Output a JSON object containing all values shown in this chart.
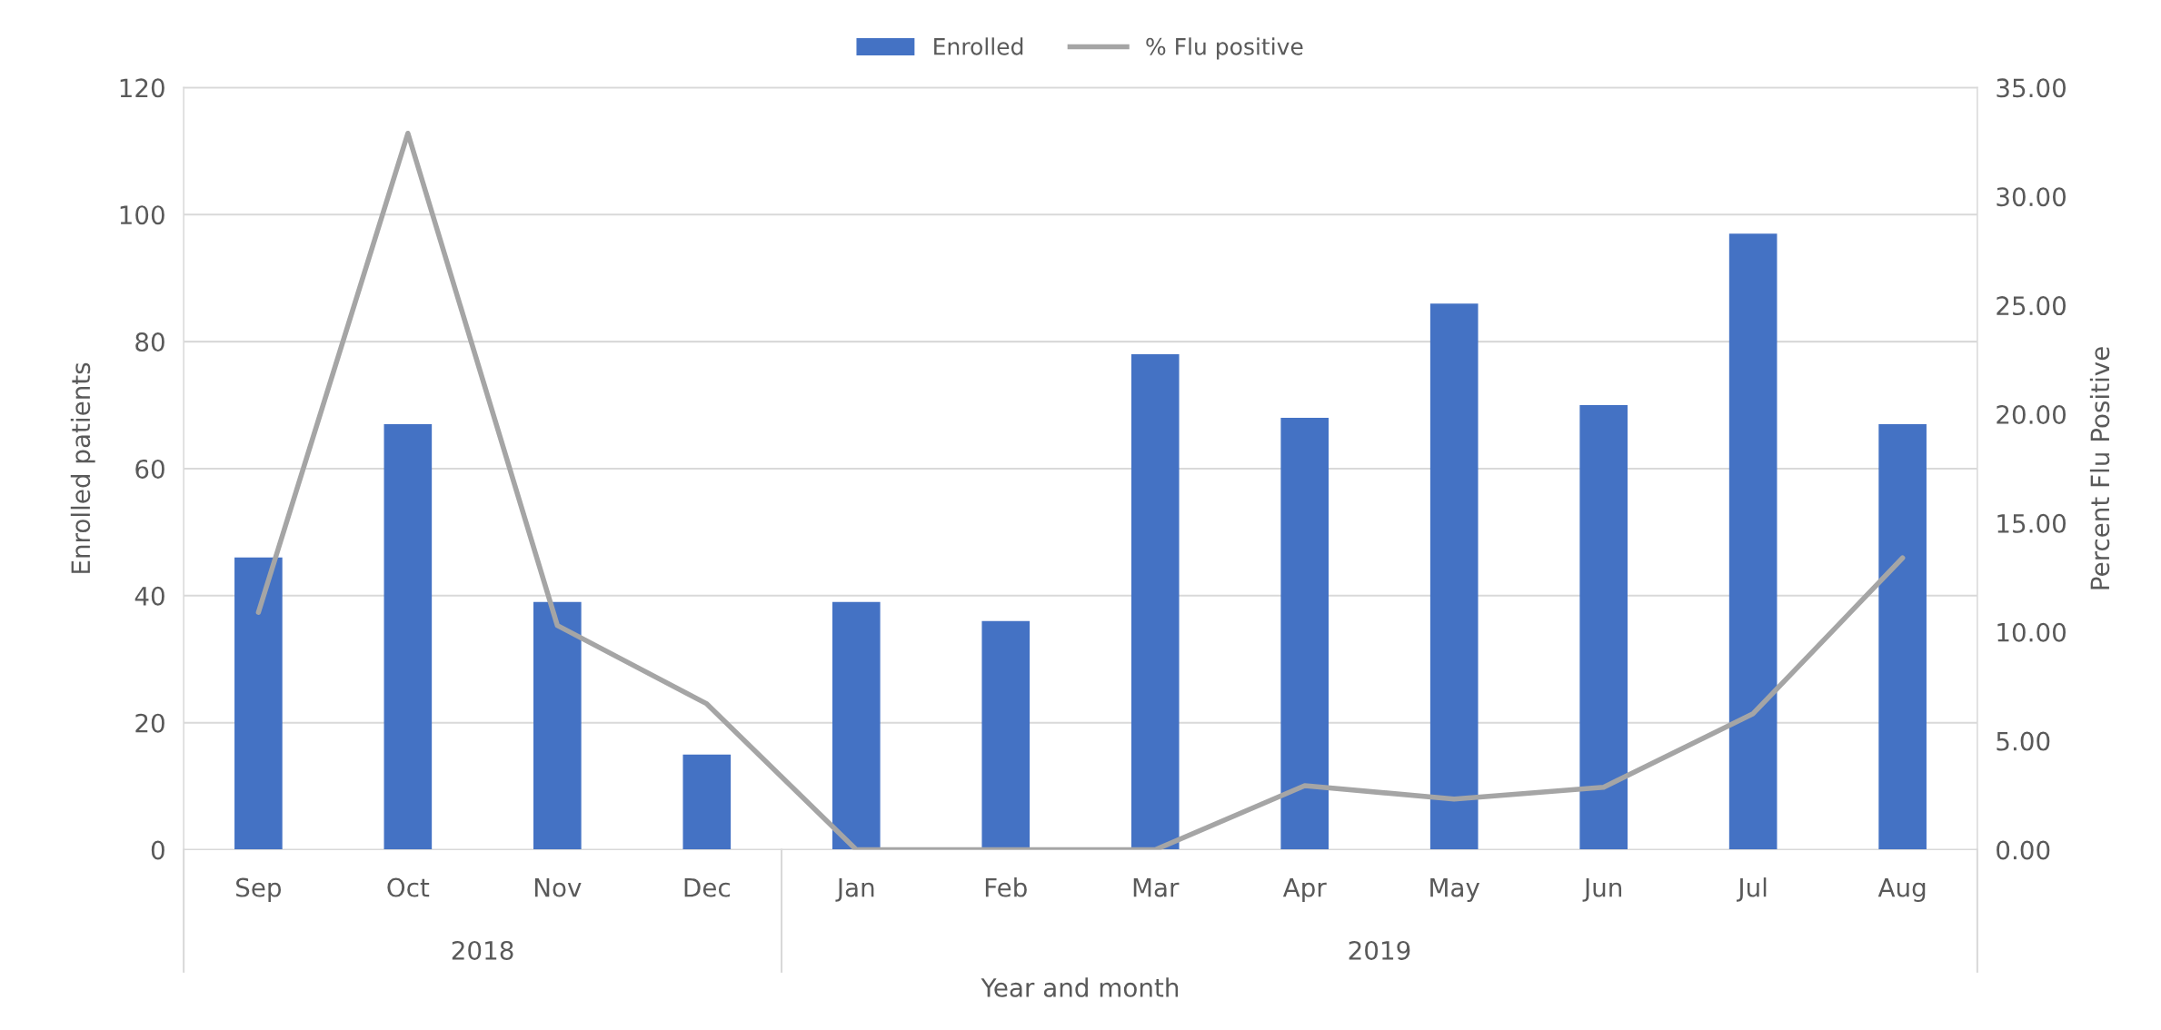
{
  "chart_data": {
    "type": "bar",
    "categories": [
      "Sep",
      "Oct",
      "Nov",
      "Dec",
      "Jan",
      "Feb",
      "Mar",
      "Apr",
      "May",
      "Jun",
      "Jul",
      "Aug"
    ],
    "series": [
      {
        "name": "Enrolled",
        "color": "#4472c4",
        "values": [
          46,
          67,
          39,
          15,
          39,
          36,
          78,
          68,
          86,
          70,
          97,
          67
        ]
      },
      {
        "name": "% Flu positive",
        "type": "line",
        "axis": "y2",
        "color": "#a5a5a5",
        "marker": "none",
        "line_style": "solid",
        "values": [
          10.9,
          32.9,
          10.3,
          6.7,
          0,
          0,
          0,
          2.94,
          2.33,
          2.87,
          6.25,
          13.4
        ]
      }
    ],
    "xlabel": "Year and month",
    "ylabel": "Enrolled patients",
    "y2label": "Percent Flu Positive",
    "ylim": [
      0,
      120
    ],
    "yticks": [
      0,
      20,
      40,
      60,
      80,
      100,
      120
    ],
    "y2lim": [
      0,
      35
    ],
    "y2ticks": [
      {
        "value": 0,
        "label": "0.00"
      },
      {
        "value": 5,
        "label": "5.00"
      },
      {
        "value": 10,
        "label": "10.00"
      },
      {
        "value": 15,
        "label": "15.00"
      },
      {
        "value": 20,
        "label": "20.00"
      },
      {
        "value": 25,
        "label": "25.00"
      },
      {
        "value": 30,
        "label": "30.00"
      },
      {
        "value": 35,
        "label": "35.00"
      }
    ],
    "annotations": [
      "2018",
      "2019"
    ],
    "grid": "y",
    "legend": "top"
  }
}
